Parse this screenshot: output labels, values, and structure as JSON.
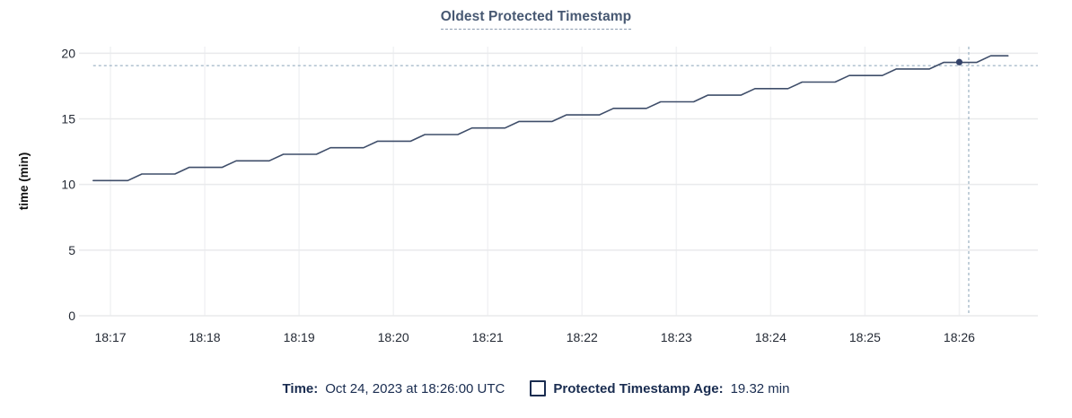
{
  "title": "Oldest Protected Timestamp",
  "legend": {
    "time_label": "Time:",
    "time_value": "Oct 24, 2023 at 18:26:00 UTC",
    "series_label": "Protected Timestamp Age:",
    "series_value": "19.32 min",
    "checkbox_checked": false
  },
  "colors": {
    "title": "#475872",
    "legend_text": "#192c50",
    "line": "#3f4e6a",
    "marker": "#34436a",
    "crosshair": "#a9bccb",
    "grid_h": "#e9eaec",
    "grid_v": "#f1f2f4",
    "axis_text": "#242a35"
  },
  "chart_data": {
    "type": "line",
    "title": "Oldest Protected Timestamp",
    "xlabel": "",
    "ylabel": "time (min)",
    "grid": true,
    "x_axis": {
      "start": "18:16:40",
      "end": "18:26:50",
      "tick_labels": [
        "18:17",
        "18:18",
        "18:19",
        "18:20",
        "18:21",
        "18:22",
        "18:23",
        "18:24",
        "18:25",
        "18:26"
      ]
    },
    "y_axis": {
      "ticks": [
        0,
        5,
        10,
        15,
        20
      ],
      "min": 0,
      "max": 20.5
    },
    "series": [
      {
        "name": "Protected Timestamp Age",
        "unit": "min",
        "points": [
          [
            "18:16:49",
            10.3
          ],
          [
            "18:17:11",
            10.3
          ],
          [
            "18:17:20",
            10.8
          ],
          [
            "18:17:41",
            10.8
          ],
          [
            "18:17:50",
            11.3
          ],
          [
            "18:18:11",
            11.3
          ],
          [
            "18:18:20",
            11.8
          ],
          [
            "18:18:41",
            11.8
          ],
          [
            "18:18:50",
            12.3
          ],
          [
            "18:19:11",
            12.3
          ],
          [
            "18:19:20",
            12.8
          ],
          [
            "18:19:41",
            12.8
          ],
          [
            "18:19:50",
            13.3
          ],
          [
            "18:20:11",
            13.3
          ],
          [
            "18:20:20",
            13.8
          ],
          [
            "18:20:41",
            13.8
          ],
          [
            "18:20:50",
            14.3
          ],
          [
            "18:21:11",
            14.3
          ],
          [
            "18:21:20",
            14.8
          ],
          [
            "18:21:41",
            14.8
          ],
          [
            "18:21:50",
            15.3
          ],
          [
            "18:22:11",
            15.3
          ],
          [
            "18:22:20",
            15.8
          ],
          [
            "18:22:41",
            15.8
          ],
          [
            "18:22:50",
            16.3
          ],
          [
            "18:23:11",
            16.3
          ],
          [
            "18:23:20",
            16.8
          ],
          [
            "18:23:41",
            16.8
          ],
          [
            "18:23:50",
            17.3
          ],
          [
            "18:24:11",
            17.3
          ],
          [
            "18:24:20",
            17.8
          ],
          [
            "18:24:41",
            17.8
          ],
          [
            "18:24:50",
            18.3
          ],
          [
            "18:25:11",
            18.3
          ],
          [
            "18:25:20",
            18.8
          ],
          [
            "18:25:41",
            18.8
          ],
          [
            "18:25:50",
            19.3
          ],
          [
            "18:26:11",
            19.3
          ],
          [
            "18:26:20",
            19.8
          ],
          [
            "18:26:31",
            19.8
          ]
        ]
      }
    ],
    "hover": {
      "point_time": "18:26:00",
      "point_value": 19.32,
      "crosshair_time": "18:26:06",
      "crosshair_value": 19.05
    }
  }
}
